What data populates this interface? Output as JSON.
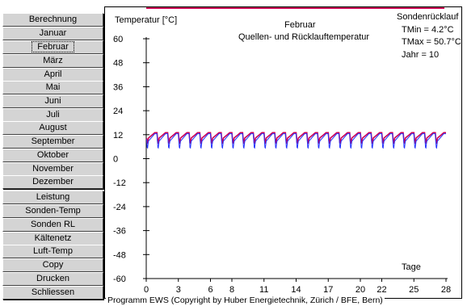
{
  "sidebar": {
    "buttons": [
      {
        "label": "Berechnung"
      },
      {
        "label": "Januar"
      },
      {
        "label": "Februar",
        "active": true
      },
      {
        "label": "März"
      },
      {
        "label": "April"
      },
      {
        "label": "Mai"
      },
      {
        "label": "Juni"
      },
      {
        "label": "Juli"
      },
      {
        "label": "August"
      },
      {
        "label": "September"
      },
      {
        "label": "Oktober"
      },
      {
        "label": "November"
      },
      {
        "label": "Dezember"
      },
      {
        "label": "Leistung"
      },
      {
        "label": "Sonden-Temp"
      },
      {
        "label": "Sonden RL"
      },
      {
        "label": "Kältenetz"
      },
      {
        "label": "Luft-Temp"
      },
      {
        "label": "Copy"
      },
      {
        "label": "Drucken"
      },
      {
        "label": "Schliessen"
      }
    ]
  },
  "chart_data": {
    "type": "line",
    "title": "Februar",
    "subtitle": "Quellen- und Rücklauftemperatur",
    "ylabel": "Temperatur [°C]",
    "xlabel": "Tage",
    "ylim": [
      -60,
      60
    ],
    "xlim": [
      0,
      28
    ],
    "yticks": [
      60,
      48,
      36,
      24,
      12,
      0,
      -12,
      -24,
      -36,
      -48,
      -60
    ],
    "xticks": [
      0,
      3,
      6,
      8,
      11,
      14,
      17,
      20,
      22,
      25,
      28
    ],
    "series": [
      {
        "color": "#cc0055",
        "daily_max": 13,
        "daily_min": 7
      },
      {
        "color": "#2233ff",
        "daily_max": 12.5,
        "daily_min": 4.2
      }
    ]
  },
  "info": {
    "title": "Sondenrücklauf",
    "tmin": "TMin  = 4.2°C",
    "tmax": "TMax = 50.7°C",
    "jahr": "Jahr  = 10"
  },
  "footer": {
    "copyright": "Programm EWS  (Copyright by Huber Energietechnik, Zürich / BFE, Bern)"
  },
  "colors": {
    "button_face": "#d4d4d4",
    "top_line": "#cc0055"
  }
}
